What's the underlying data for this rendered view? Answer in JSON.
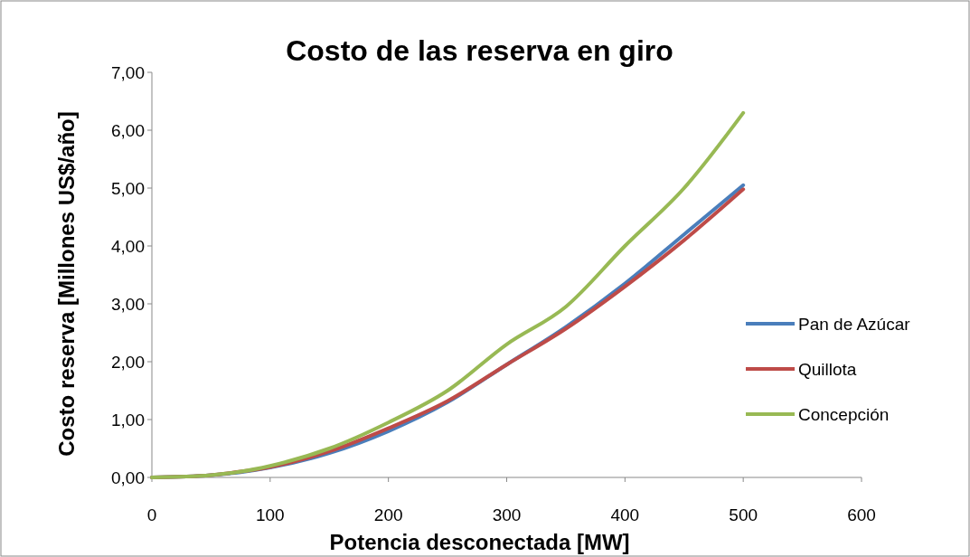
{
  "chart_data": {
    "type": "line",
    "title": "Costo de las reserva en giro",
    "xlabel": "Potencia desconectada [MW]",
    "ylabel": "Costo reserva [Millones US$/año]",
    "xlim": [
      0,
      600
    ],
    "xticks": [
      0,
      100,
      200,
      300,
      400,
      500,
      600
    ],
    "ylim": [
      0,
      7
    ],
    "yticks": [
      {
        "value": 0,
        "label": "0,00"
      },
      {
        "value": 1,
        "label": "1,00"
      },
      {
        "value": 2,
        "label": "2,00"
      },
      {
        "value": 3,
        "label": "3,00"
      },
      {
        "value": 4,
        "label": "4,00"
      },
      {
        "value": 5,
        "label": "5,00"
      },
      {
        "value": 6,
        "label": "6,00"
      },
      {
        "value": 7,
        "label": "7,00"
      }
    ],
    "grid": false,
    "legend": "right",
    "marker": "none",
    "line_style": "solid",
    "x": [
      0,
      50,
      75,
      100,
      150,
      200,
      250,
      300,
      350,
      400,
      450,
      500
    ],
    "series": [
      {
        "name": "Pan de Azúcar",
        "color": "#4a7ebb",
        "values": [
          0,
          0.04,
          0.09,
          0.17,
          0.42,
          0.8,
          1.3,
          1.95,
          2.6,
          3.35,
          4.2,
          5.05
        ]
      },
      {
        "name": "Quillota",
        "color": "#be4b48",
        "values": [
          0,
          0.04,
          0.1,
          0.18,
          0.45,
          0.85,
          1.32,
          1.95,
          2.57,
          3.3,
          4.1,
          4.98
        ]
      },
      {
        "name": "Concepción",
        "color": "#98b954",
        "values": [
          0,
          0.04,
          0.1,
          0.2,
          0.5,
          0.95,
          1.5,
          2.3,
          2.95,
          4.0,
          5.0,
          6.3
        ]
      }
    ]
  }
}
